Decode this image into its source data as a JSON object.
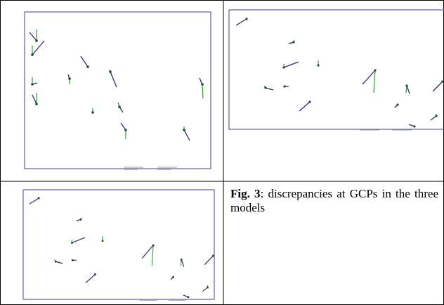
{
  "caption": {
    "label": "Fig. 3",
    "text": ": discrepancies at GCPs in the three models"
  }
}
